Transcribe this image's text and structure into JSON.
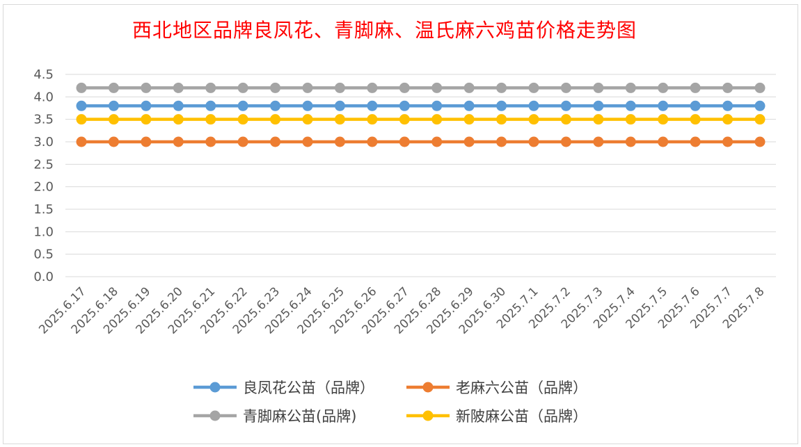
{
  "chart_data": {
    "type": "line",
    "title": "西北地区品牌良凤花、青脚麻、温氏麻六鸡苗价格走势图",
    "xlabel": "",
    "ylabel": "",
    "ylim": [
      0,
      4.5
    ],
    "yticks": [
      "0.0",
      "0.5",
      "1.0",
      "1.5",
      "2.0",
      "2.5",
      "3.0",
      "3.5",
      "4.0",
      "4.5"
    ],
    "grid": true,
    "legend_position": "bottom",
    "categories": [
      "2025.6.17",
      "2025.6.18",
      "2025.6.19",
      "2025.6.20",
      "2025.6.21",
      "2025.6.22",
      "2025.6.23",
      "2025.6.24",
      "2025.6.25",
      "2025.6.26",
      "2025.6.27",
      "2025.6.28",
      "2025.6.29",
      "2025.6.30",
      "2025.7.1",
      "2025.7.2",
      "2025.7.3",
      "2025.7.4",
      "2025.7.5",
      "2025.7.6",
      "2025.7.7",
      "2025.7.8"
    ],
    "series": [
      {
        "name": "良凤花公苗（品牌）",
        "color": "#5b9bd5",
        "values": [
          3.8,
          3.8,
          3.8,
          3.8,
          3.8,
          3.8,
          3.8,
          3.8,
          3.8,
          3.8,
          3.8,
          3.8,
          3.8,
          3.8,
          3.8,
          3.8,
          3.8,
          3.8,
          3.8,
          3.8,
          3.8,
          3.8
        ]
      },
      {
        "name": "老麻六公苗（品牌）",
        "color": "#ed7d31",
        "values": [
          3.0,
          3.0,
          3.0,
          3.0,
          3.0,
          3.0,
          3.0,
          3.0,
          3.0,
          3.0,
          3.0,
          3.0,
          3.0,
          3.0,
          3.0,
          3.0,
          3.0,
          3.0,
          3.0,
          3.0,
          3.0,
          3.0
        ]
      },
      {
        "name": "青脚麻公苗(品牌)",
        "color": "#a5a5a5",
        "values": [
          4.2,
          4.2,
          4.2,
          4.2,
          4.2,
          4.2,
          4.2,
          4.2,
          4.2,
          4.2,
          4.2,
          4.2,
          4.2,
          4.2,
          4.2,
          4.2,
          4.2,
          4.2,
          4.2,
          4.2,
          4.2,
          4.2
        ]
      },
      {
        "name": "新陂麻公苗（品牌）",
        "color": "#ffc000",
        "values": [
          3.5,
          3.5,
          3.5,
          3.5,
          3.5,
          3.5,
          3.5,
          3.5,
          3.5,
          3.5,
          3.5,
          3.5,
          3.5,
          3.5,
          3.5,
          3.5,
          3.5,
          3.5,
          3.5,
          3.5,
          3.5,
          3.5
        ]
      }
    ]
  }
}
